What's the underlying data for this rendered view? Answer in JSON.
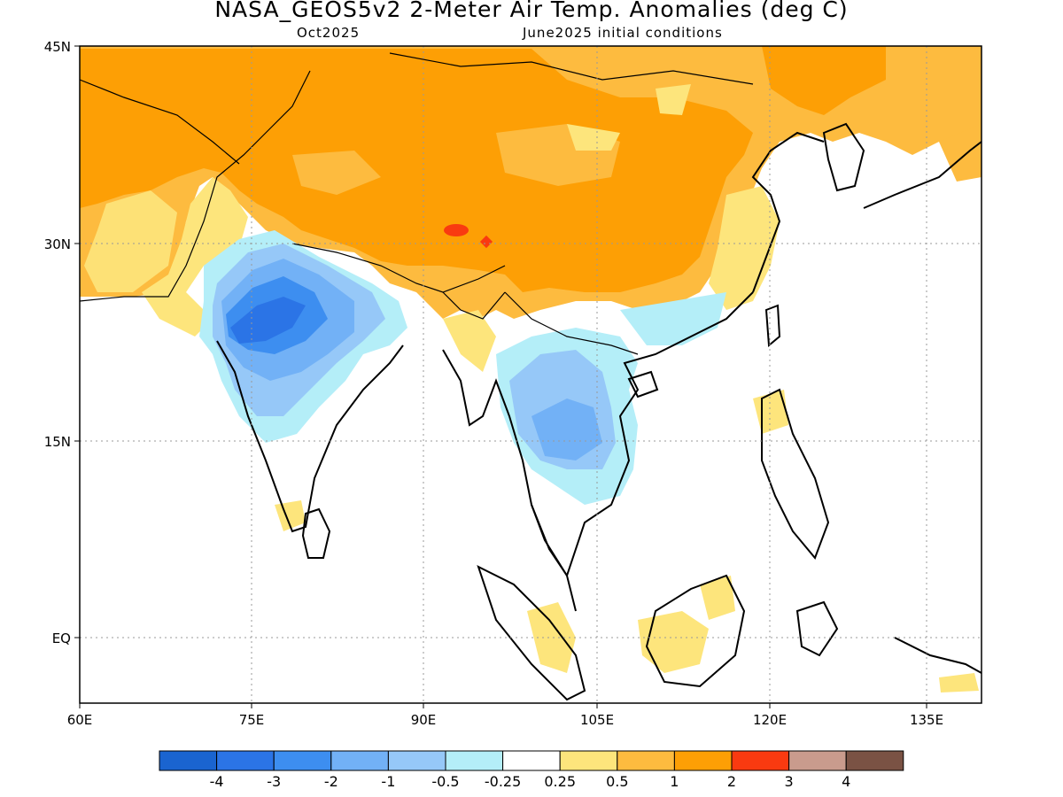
{
  "title": "NASA_GEOS5v2 2-Meter Air Temp. Anomalies (deg C)",
  "subtitle_left": "Oct2025",
  "subtitle_right": "June2025 initial conditions",
  "axes": {
    "lat_ticks": [
      "45N",
      "30N",
      "15N",
      "EQ"
    ],
    "lon_ticks": [
      "60E",
      "75E",
      "90E",
      "105E",
      "120E",
      "135E"
    ],
    "lat_range": [
      -5,
      45
    ],
    "lon_range": [
      60,
      138
    ],
    "grid": "dotted"
  },
  "colorbar": {
    "labels": [
      "-4",
      "-3",
      "-2",
      "-1",
      "-0.5",
      "-0.25",
      "0.25",
      "0.5",
      "1",
      "2",
      "3",
      "4"
    ],
    "colors": [
      "#1a64d0",
      "#2b74e6",
      "#3d8ef0",
      "#72b1f6",
      "#96c8f8",
      "#b4eef8",
      "#ffffff",
      "#fde57c",
      "#fdbb3f",
      "#fd9f05",
      "#f93a10",
      "#c99b8d",
      "#7a5244"
    ]
  },
  "colors": {
    "strong_cold": "#2b74e6",
    "cold": "#72b1f6",
    "cool": "#96c8f8",
    "slight_cool": "#b4eef8",
    "slight_warm": "#fde57c",
    "warm": "#fdbb3f",
    "hot": "#fd9f05",
    "very_hot": "#f93a10"
  }
}
